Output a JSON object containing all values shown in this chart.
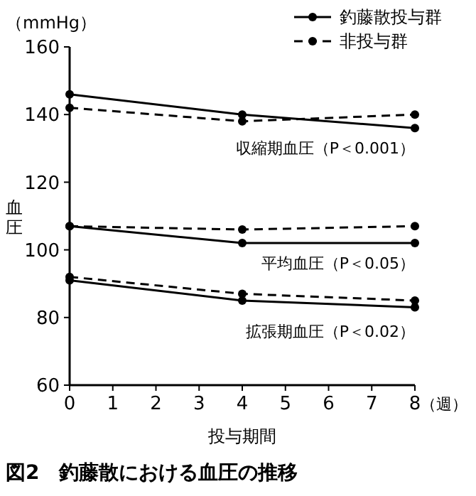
{
  "chart_data": {
    "type": "line",
    "title": "図2　釣藤散における血圧の推移",
    "xlabel": "投与期間",
    "ylabel": "血圧",
    "x": [
      0,
      4,
      8
    ],
    "xlim": [
      0,
      8
    ],
    "xticks": [
      0,
      1,
      2,
      3,
      4,
      5,
      6,
      7,
      8
    ],
    "ylim": [
      60,
      160
    ],
    "yticks": [
      60,
      80,
      100,
      120,
      140,
      160
    ],
    "grid": false,
    "legend": "top right",
    "marker": "circle",
    "series": [
      {
        "name": "釣藤散投与群",
        "color": "#000000",
        "line_style": "solid",
        "values": [
          146,
          140,
          136
        ]
      },
      {
        "name": "非投与群",
        "color": "#000000",
        "line_style": "dashed",
        "values": [
          142,
          138,
          140
        ]
      },
      {
        "color": "#000000",
        "line_style": "solid",
        "values": [
          107,
          102,
          102
        ]
      },
      {
        "color": "#000000",
        "line_style": "dashed",
        "values": [
          107,
          106,
          107
        ]
      },
      {
        "color": "#000000",
        "line_style": "solid",
        "values": [
          91,
          85,
          83
        ]
      },
      {
        "color": "#000000",
        "line_style": "dashed",
        "values": [
          92,
          87,
          85
        ]
      }
    ],
    "annotations": [
      "（mmHg）",
      "（週）",
      "収縮期血圧（P＜0.001）",
      "平均血圧（P＜0.05）",
      "拡張期血圧（P＜0.02）"
    ]
  }
}
